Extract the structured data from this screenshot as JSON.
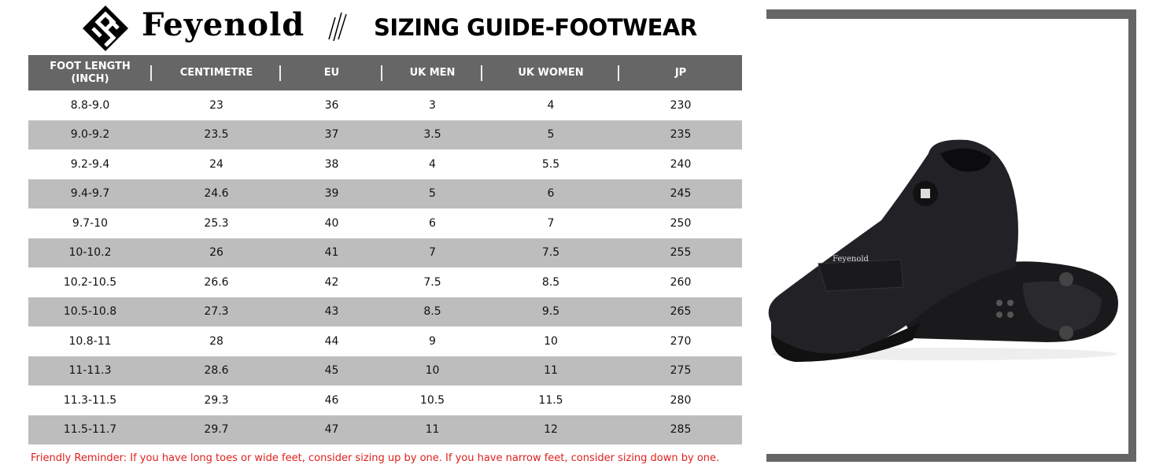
{
  "brand": {
    "name": "Feyenold",
    "logo_icon": "feyenold-diamond-logo"
  },
  "title": "SIZING GUIDE-FOOTWEAR",
  "table": {
    "headers": [
      "FOOT LENGTH (INCH)",
      "CENTIMETRE",
      "EU",
      "UK MEN",
      "UK WOMEN",
      "JP"
    ],
    "rows": [
      [
        "8.8-9.0",
        "23",
        "36",
        "3",
        "4",
        "230"
      ],
      [
        "9.0-9.2",
        "23.5",
        "37",
        "3.5",
        "5",
        "235"
      ],
      [
        "9.2-9.4",
        "24",
        "38",
        "4",
        "5.5",
        "240"
      ],
      [
        "9.4-9.7",
        "24.6",
        "39",
        "5",
        "6",
        "245"
      ],
      [
        "9.7-10",
        "25.3",
        "40",
        "6",
        "7",
        "250"
      ],
      [
        "10-10.2",
        "26",
        "41",
        "7",
        "7.5",
        "255"
      ],
      [
        "10.2-10.5",
        "26.6",
        "42",
        "7.5",
        "8.5",
        "260"
      ],
      [
        "10.5-10.8",
        "27.3",
        "43",
        "8.5",
        "9.5",
        "265"
      ],
      [
        "10.8-11",
        "28",
        "44",
        "9",
        "10",
        "270"
      ],
      [
        "11-11.3",
        "28.6",
        "45",
        "10",
        "11",
        "275"
      ],
      [
        "11.3-11.5",
        "29.3",
        "46",
        "10.5",
        "11.5",
        "280"
      ],
      [
        "11.5-11.7",
        "29.7",
        "47",
        "11",
        "12",
        "285"
      ]
    ]
  },
  "reminder": "Friendly Reminder: If you have long toes or wide feet, consider sizing up by one. If you have narrow feet, consider sizing down by one.",
  "colors": {
    "header_bg": "#666666",
    "alt_row": "#bdbdbd",
    "reminder": "#e0201c",
    "frame": "#666666"
  },
  "product_image": {
    "icon": "black-cycling-shoe",
    "strap_text": "Feyenold"
  }
}
